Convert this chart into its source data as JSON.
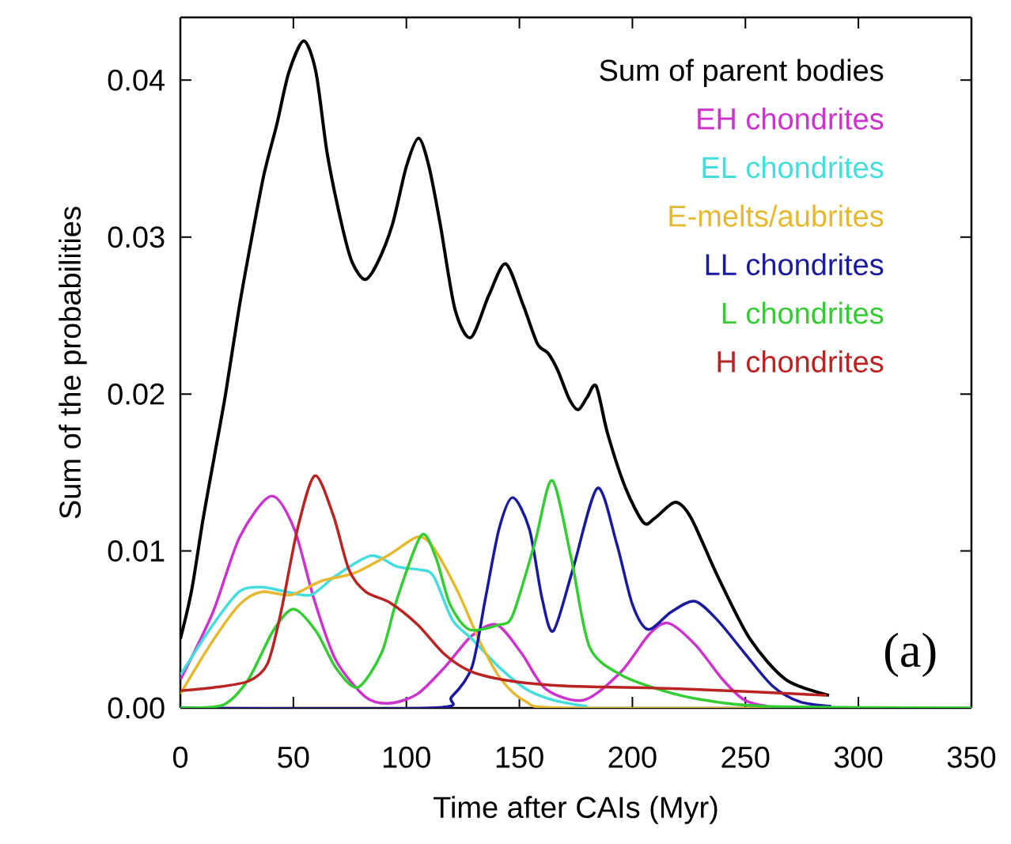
{
  "chart_data": {
    "type": "line",
    "xlabel": "Time after CAIs (Myr)",
    "ylabel": "Sum of the probabilities",
    "xlim": [
      0,
      350
    ],
    "ylim": [
      0,
      0.044
    ],
    "xticks": [
      0,
      50,
      100,
      150,
      200,
      250,
      300,
      350
    ],
    "yticks": [
      {
        "value": 0,
        "label": "0.00"
      },
      {
        "value": 0.01,
        "label": "0.01"
      },
      {
        "value": 0.02,
        "label": "0.02"
      },
      {
        "value": 0.03,
        "label": "0.03"
      },
      {
        "value": 0.04,
        "label": "0.04"
      }
    ],
    "legend": "top right",
    "line_style": "solid",
    "marker": "none",
    "annotations": [
      "(a)"
    ],
    "series": [
      {
        "name": "Sum of parent bodies",
        "color": "#000000",
        "x": [
          0,
          5,
          10,
          15,
          20,
          26,
          31.5,
          37,
          42.7,
          48,
          54.6,
          60,
          65,
          71.4,
          76,
          81.6,
          87,
          93.8,
          100,
          105.4,
          110,
          115,
          121.5,
          128.5,
          136.5,
          143.9,
          151.6,
          158,
          162.7,
          167,
          172,
          176,
          180,
          184,
          189,
          197,
          205,
          210,
          219,
          226,
          237.7,
          252,
          268,
          287
        ],
        "values": [
          0.0044,
          0.0075,
          0.012,
          0.016,
          0.02,
          0.0255,
          0.0299,
          0.034,
          0.0372,
          0.0405,
          0.0425,
          0.0405,
          0.0353,
          0.0308,
          0.0284,
          0.0273,
          0.0283,
          0.0308,
          0.0345,
          0.0363,
          0.0345,
          0.0308,
          0.0254,
          0.0236,
          0.0263,
          0.0283,
          0.0257,
          0.0232,
          0.0226,
          0.0215,
          0.0197,
          0.019,
          0.0198,
          0.0205,
          0.0175,
          0.014,
          0.0118,
          0.0121,
          0.0131,
          0.0121,
          0.0084,
          0.0044,
          0.0018,
          0.0008
        ]
      },
      {
        "name": "EH chondrites",
        "color": "#cc33cc",
        "x": [
          0,
          14.4,
          26.3,
          40.2,
          50.4,
          59,
          68.6,
          81.9,
          92.8,
          105,
          117,
          129,
          140,
          150.9,
          161.7,
          178.5,
          195,
          207.5,
          216,
          228,
          240,
          249.6,
          260
        ],
        "values": [
          0.0018,
          0.0061,
          0.0109,
          0.0135,
          0.0114,
          0.007,
          0.0031,
          0.0007,
          0.0003,
          0.0009,
          0.0026,
          0.0046,
          0.0053,
          0.0035,
          0.0012,
          0.0005,
          0.0023,
          0.0047,
          0.0054,
          0.004,
          0.0018,
          0.0005,
          0.0001
        ]
      },
      {
        "name": "EL chondrites",
        "color": "#44dddd",
        "x": [
          0,
          14.4,
          26,
          36,
          47,
          57.8,
          68.6,
          84.4,
          96,
          106,
          112,
          120.4,
          129,
          141,
          153,
          165,
          180
        ],
        "values": [
          0.0021,
          0.0053,
          0.0074,
          0.0077,
          0.0074,
          0.0072,
          0.0084,
          0.0097,
          0.009,
          0.0088,
          0.0084,
          0.0056,
          0.0044,
          0.0026,
          0.0012,
          0.0005,
          0.0001
        ]
      },
      {
        "name": "E-melts/aubrites",
        "color": "#e6b830",
        "x": [
          0,
          14,
          26.3,
          36,
          49,
          62.6,
          77,
          92.8,
          105,
          112,
          122.8,
          132.6,
          142,
          153,
          170,
          290
        ],
        "values": [
          0.0009,
          0.0042,
          0.0066,
          0.0074,
          0.0072,
          0.0081,
          0.0086,
          0.0098,
          0.0109,
          0.0102,
          0.0074,
          0.0042,
          0.0018,
          0.0004,
          0.0,
          0.0
        ]
      },
      {
        "name": "LL chondrites",
        "color": "#1a1aa0",
        "x": [
          0,
          111,
          120,
          129,
          135,
          141,
          147,
          154.4,
          160,
          165,
          173.6,
          184.5,
          193,
          200,
          207,
          217,
          227.5,
          237.6,
          249.6,
          262,
          274,
          288
        ],
        "values": [
          0.0,
          0.0,
          0.0007,
          0.0026,
          0.007,
          0.0114,
          0.0134,
          0.0114,
          0.007,
          0.0049,
          0.0088,
          0.014,
          0.0105,
          0.0066,
          0.005,
          0.0061,
          0.0068,
          0.0056,
          0.0035,
          0.0014,
          0.0004,
          0.0001
        ]
      },
      {
        "name": "L chondrites",
        "color": "#33cc33",
        "x": [
          0,
          19,
          30,
          41,
          50,
          60,
          68.6,
          78.4,
          89,
          96,
          106.6,
          113,
          119.3,
          127.8,
          141,
          147,
          156.8,
          164.5,
          173,
          181,
          195,
          213.5,
          231.7,
          260,
          350
        ],
        "values": [
          0.0,
          0.0002,
          0.0018,
          0.0049,
          0.0063,
          0.0049,
          0.0026,
          0.0013,
          0.0035,
          0.007,
          0.011,
          0.0096,
          0.0066,
          0.005,
          0.0053,
          0.0059,
          0.0105,
          0.0145,
          0.0095,
          0.0039,
          0.0021,
          0.0011,
          0.0005,
          0.0001,
          0.0
        ]
      },
      {
        "name": "H chondrites",
        "color": "#bb2222",
        "x": [
          0,
          14.4,
          30,
          38.5,
          44.5,
          51.8,
          59.5,
          67.6,
          74.6,
          82,
          92.8,
          105,
          117,
          129,
          147,
          171,
          225,
          286
        ],
        "values": [
          0.0011,
          0.0013,
          0.0017,
          0.0028,
          0.0061,
          0.0114,
          0.0148,
          0.0123,
          0.0088,
          0.0074,
          0.0067,
          0.0053,
          0.0034,
          0.0023,
          0.0017,
          0.0014,
          0.0012,
          0.0008
        ]
      }
    ]
  }
}
